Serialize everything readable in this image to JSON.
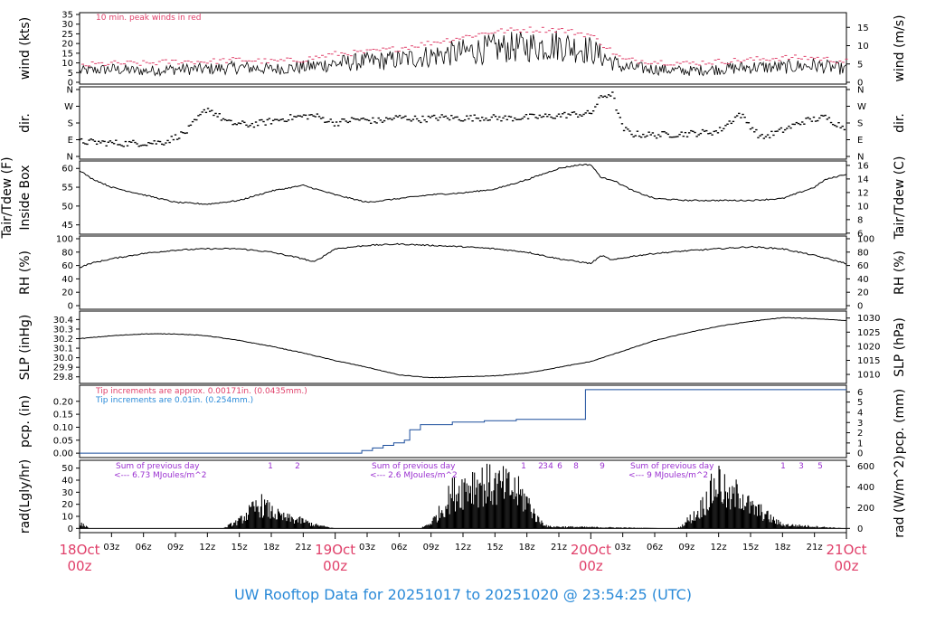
{
  "title": "UW Rooftop Data for 20251017  to  20251020 @ 23:54:25  (UTC)",
  "colors": {
    "ink": "#000000",
    "red": "#e0406a",
    "blue": "#2a8ad8",
    "purple": "#9a30d0",
    "line": "#1a4d9c"
  },
  "chart_data": [
    {
      "type": "line",
      "panel": "wind",
      "ylabel_left": "wind (kts)",
      "ylabel_right": "wind (m/s)",
      "ylim": [
        0,
        36
      ],
      "yticks_left": [
        "0",
        "5",
        "10",
        "15",
        "20",
        "25",
        "30",
        "35"
      ],
      "yticks_right": [
        "0",
        "5",
        "10",
        "15"
      ],
      "annotation": "10 min. peak winds in red",
      "series": [
        {
          "x": [
            0,
            3,
            6,
            9,
            12,
            15,
            18,
            21,
            24,
            27,
            30,
            33,
            36,
            39,
            42,
            45,
            48,
            51,
            54,
            57,
            60,
            63,
            66,
            69,
            72
          ],
          "y": [
            6,
            7,
            6,
            7,
            7,
            8,
            7,
            8,
            10,
            11,
            12,
            14,
            16,
            18,
            19,
            20,
            17,
            8,
            7,
            6,
            7,
            8,
            8,
            9,
            7
          ]
        },
        {
          "x": [
            0,
            3,
            6,
            9,
            12,
            15,
            18,
            21,
            24,
            27,
            30,
            33,
            36,
            39,
            42,
            45,
            48,
            51,
            54,
            57,
            60,
            63,
            66,
            69,
            72
          ],
          "y": [
            9,
            10,
            10,
            11,
            11,
            12,
            11,
            12,
            15,
            16,
            18,
            21,
            24,
            27,
            28,
            28,
            25,
            12,
            11,
            10,
            11,
            12,
            13,
            13,
            11
          ]
        }
      ]
    },
    {
      "type": "scatter",
      "panel": "dir",
      "ylabel_left": "dir.",
      "ylabel_right": "dir.",
      "yticks_left": [
        "N",
        "E",
        "S",
        "W",
        "N"
      ],
      "yticks_right": [
        "N",
        "E",
        "S",
        "W",
        "N"
      ],
      "ylim": [
        0,
        360
      ],
      "x": [
        0,
        2,
        4,
        6,
        8,
        10,
        12,
        14,
        16,
        18,
        20,
        22,
        24,
        26,
        28,
        30,
        32,
        34,
        36,
        38,
        40,
        42,
        44,
        46,
        48,
        49,
        50,
        51,
        52,
        54,
        56,
        58,
        60,
        62,
        64,
        66,
        68,
        70,
        72
      ],
      "y": [
        80,
        75,
        70,
        72,
        78,
        130,
        260,
        180,
        170,
        190,
        210,
        220,
        180,
        200,
        190,
        210,
        200,
        210,
        205,
        210,
        205,
        210,
        215,
        225,
        230,
        320,
        340,
        150,
        120,
        115,
        120,
        125,
        135,
        230,
        100,
        140,
        190,
        210,
        150
      ]
    },
    {
      "type": "line",
      "panel": "temp",
      "ylabel_left": "Tair/Tdew (F)",
      "ylabel_left_2": "Inside Box",
      "ylabel_right": "Tair/Tdew (C)",
      "ylim": [
        43,
        61.5
      ],
      "yticks_left": [
        "45",
        "50",
        "55",
        "60"
      ],
      "yticks_right": [
        "6",
        "8",
        "10",
        "12",
        "14",
        "16"
      ],
      "series": [
        {
          "x": [
            0,
            1,
            3,
            6,
            9,
            12,
            15,
            18,
            21,
            24,
            27,
            30,
            33,
            36,
            39,
            42,
            45,
            47,
            48,
            49,
            50,
            52,
            54,
            57,
            60,
            63,
            66,
            69,
            70,
            72
          ],
          "y": [
            59.5,
            57.5,
            55,
            53,
            51,
            50.5,
            51.5,
            54,
            55.5,
            53,
            51,
            52,
            53,
            53.5,
            54.5,
            57,
            60,
            61,
            61,
            57.5,
            57,
            54,
            52,
            51.5,
            51.5,
            51.5,
            52,
            55,
            57,
            58.5
          ]
        }
      ]
    },
    {
      "type": "line",
      "panel": "rh",
      "ylabel_left": "RH (%)",
      "ylabel_right": "RH (%)",
      "ylim": [
        0,
        100
      ],
      "yticks_left": [
        "0",
        "20",
        "40",
        "60",
        "80",
        "100"
      ],
      "yticks_right": [
        "0",
        "20",
        "40",
        "60",
        "80",
        "100"
      ],
      "series": [
        {
          "x": [
            0,
            1,
            3,
            6,
            9,
            12,
            15,
            18,
            21,
            22,
            24,
            27,
            30,
            33,
            36,
            39,
            42,
            45,
            48,
            49,
            50,
            52,
            54,
            57,
            60,
            63,
            66,
            69,
            72
          ],
          "y": [
            57,
            63,
            70,
            78,
            83,
            85,
            85,
            80,
            70,
            65,
            85,
            90,
            92,
            90,
            88,
            85,
            80,
            70,
            63,
            75,
            68,
            74,
            78,
            82,
            85,
            88,
            85,
            75,
            63
          ]
        }
      ]
    },
    {
      "type": "line",
      "panel": "slp",
      "ylabel_left": "SLP (inHg)",
      "ylabel_right": "SLP (hPa)",
      "ylim": [
        29.75,
        30.47
      ],
      "yticks_left": [
        "29.8",
        "29.9",
        "30.0",
        "30.1",
        "30.2",
        "30.3",
        "30.4"
      ],
      "yticks_right": [
        "1010",
        "1015",
        "1020",
        "1025",
        "1030"
      ],
      "series": [
        {
          "x": [
            0,
            3,
            6,
            9,
            12,
            15,
            18,
            21,
            24,
            27,
            30,
            33,
            36,
            39,
            42,
            45,
            48,
            51,
            54,
            57,
            60,
            63,
            66,
            69,
            72
          ],
          "y": [
            30.2,
            30.23,
            30.25,
            30.25,
            30.23,
            30.18,
            30.12,
            30.05,
            29.97,
            29.9,
            29.82,
            29.79,
            29.8,
            29.81,
            29.84,
            29.9,
            29.96,
            30.07,
            30.18,
            30.26,
            30.33,
            30.38,
            30.42,
            30.41,
            30.39
          ]
        }
      ]
    },
    {
      "type": "line",
      "panel": "pcp",
      "ylabel_left": "pcp. (in)",
      "ylabel_right": "pcp. (mm)",
      "ylim": [
        -0.01,
        0.255
      ],
      "yticks_left": [
        "0.00",
        "0.05",
        "0.10",
        "0.15",
        "0.20"
      ],
      "yticks_right": [
        "0",
        "1",
        "2",
        "3",
        "4",
        "5",
        "6"
      ],
      "note_red": "Tip increments are approx. 0.00171in. (0.0435mm.)",
      "note_blue": "Tip increments are 0.01in. (0.254mm.)",
      "series": [
        {
          "x": [
            0,
            26,
            26.5,
            27.5,
            28.5,
            29.5,
            30.5,
            31,
            32,
            35,
            38,
            41,
            44,
            47,
            47.5,
            50,
            72
          ],
          "y": [
            0,
            0,
            0.01,
            0.02,
            0.03,
            0.04,
            0.05,
            0.09,
            0.11,
            0.12,
            0.125,
            0.13,
            0.13,
            0.13,
            0.245,
            0.245,
            0.245
          ]
        }
      ]
    },
    {
      "type": "area",
      "panel": "rad",
      "ylabel_left": "rad(Lgly/hr)",
      "ylabel_right": "rad (W/m^2)",
      "ylim": [
        -2,
        55
      ],
      "yticks_left": [
        "0",
        "10",
        "20",
        "30",
        "40",
        "50"
      ],
      "yticks_right": [
        "0",
        "200",
        "400",
        "600"
      ],
      "day_notes": [
        {
          "line1": "Sum of previous day",
          "line2": "<--- 6.73 MJoules/m^2"
        },
        {
          "line1": "Sum of previous day",
          "line2": "<--- 2.6 MJoules/m^2"
        },
        {
          "line1": "Sum of previous day",
          "line2": "<--- 9 MJoules/m^2"
        }
      ],
      "markers": [
        "1",
        "2",
        "1",
        "2",
        "3",
        "4",
        "6",
        "8",
        "9",
        "1",
        "3",
        "5"
      ],
      "series": [
        {
          "x": [
            0,
            0.5,
            1,
            13.5,
            14,
            15,
            16,
            17,
            18,
            19,
            20,
            21,
            22,
            24,
            32,
            33,
            34,
            35,
            36,
            37,
            38,
            39,
            40,
            41,
            42,
            43,
            44,
            56,
            56.5,
            57,
            58,
            59,
            60,
            61,
            62,
            63,
            64,
            65,
            66,
            72
          ],
          "y": [
            5,
            3,
            0,
            0,
            3,
            8,
            18,
            26,
            18,
            12,
            10,
            8,
            4,
            0,
            0,
            6,
            20,
            38,
            44,
            50,
            48,
            46,
            45,
            40,
            30,
            10,
            2,
            0,
            2,
            8,
            16,
            34,
            52,
            30,
            40,
            22,
            18,
            10,
            4,
            0
          ]
        }
      ]
    }
  ],
  "x_axis": {
    "ticks": [
      "03z",
      "06z",
      "09z",
      "12z",
      "15z",
      "18z",
      "21z",
      "03z",
      "06z",
      "09z",
      "12z",
      "15z",
      "18z",
      "21z",
      "03z",
      "06z",
      "09z",
      "12z",
      "15z",
      "18z",
      "21z"
    ],
    "days": [
      {
        "date": "18Oct",
        "hour": "00z"
      },
      {
        "date": "19Oct",
        "hour": "00z"
      },
      {
        "date": "20Oct",
        "hour": "00z"
      },
      {
        "date": "21Oct",
        "hour": "00z"
      }
    ]
  }
}
